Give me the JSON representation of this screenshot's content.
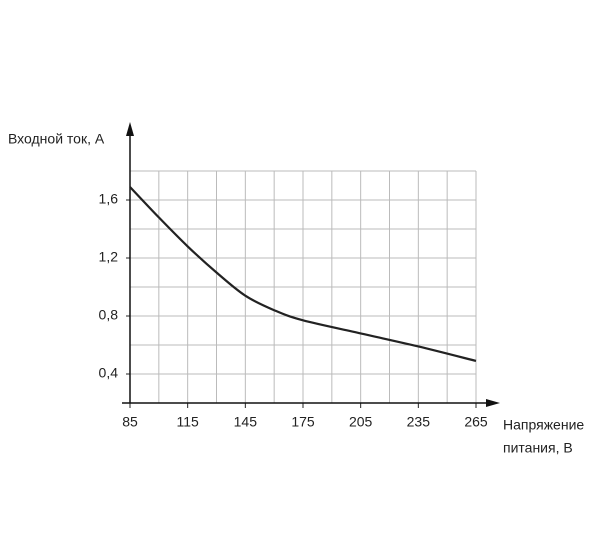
{
  "chart_data": {
    "type": "line",
    "y_label": "Входной ток, А",
    "x_label": [
      "Напряжение",
      "питания, В"
    ],
    "x": [
      85,
      100,
      115,
      130,
      145,
      160,
      175,
      205,
      235,
      265
    ],
    "values": [
      1.69,
      1.48,
      1.28,
      1.1,
      0.94,
      0.84,
      0.77,
      0.68,
      0.59,
      0.49
    ],
    "color": "#222222",
    "xlim": [
      85,
      265
    ],
    "xticks": [
      85,
      115,
      145,
      175,
      205,
      235,
      265
    ],
    "ylim": [
      0.2,
      1.8
    ],
    "yticks": [
      {
        "value": 0.4,
        "label": "0,4"
      },
      {
        "value": 0.8,
        "label": "0,8"
      },
      {
        "value": 1.2,
        "label": "1,2"
      },
      {
        "value": 1.6,
        "label": "1,6"
      }
    ],
    "grid": true
  }
}
